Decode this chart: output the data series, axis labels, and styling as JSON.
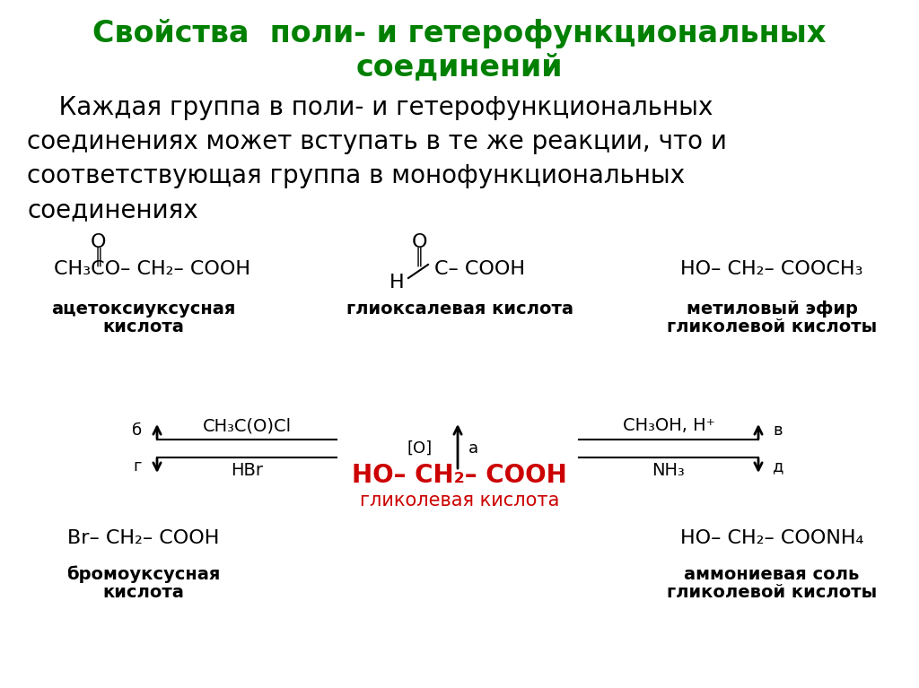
{
  "title_line1": "Свойства  поли- и гетерофункциональных",
  "title_line2": "соединений",
  "title_color": "#008000",
  "title_fontsize": 24,
  "body_fontsize": 20,
  "chem_fontsize": 16,
  "label_fontsize": 14,
  "bg_color": "#ffffff",
  "text_color": "#000000",
  "red_color": "#cc0000",
  "green_color": "#008000",
  "body_lines": [
    "    Каждая группа в поли- и гетерофункциональных",
    "соединениях может вступать в те же реакции, что и",
    "соответствующая группа в монофункциональных",
    "соединениях"
  ]
}
